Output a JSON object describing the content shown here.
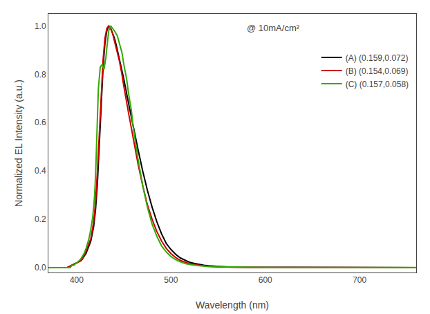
{
  "chart_data": {
    "type": "line",
    "xlabel": "Wavelength (nm)",
    "ylabel": "Normalized EL Intensity (a.u.)",
    "xlim": [
      370,
      760
    ],
    "ylim": [
      -0.02,
      1.05
    ],
    "xticks": [
      400,
      500,
      600,
      700
    ],
    "yticks": [
      {
        "value": 0.0,
        "label": "0.0"
      },
      0.2,
      0.4,
      0.6,
      0.8,
      {
        "value": 1.0,
        "label": "1.0"
      }
    ],
    "annotation": "@ 10mA/cm²",
    "legend": "upper right",
    "grid": false,
    "series": [
      {
        "name": "(A) (0.159,0.072)",
        "color": "#000000",
        "x": [
          370,
          375,
          380,
          385,
          390,
          395,
          400,
          405,
          410,
          415,
          418,
          420,
          422,
          424,
          426,
          428,
          430,
          432,
          434,
          436,
          438,
          440,
          442,
          445,
          448,
          450,
          455,
          460,
          465,
          470,
          475,
          480,
          485,
          490,
          495,
          500,
          505,
          510,
          515,
          520,
          525,
          530,
          535,
          540,
          550,
          560,
          570,
          580,
          590,
          600,
          620,
          640,
          660,
          680,
          700,
          720,
          740,
          760
        ],
        "values": [
          0.0,
          0.0,
          0.0,
          0.0,
          0.0,
          0.01,
          0.02,
          0.03,
          0.06,
          0.11,
          0.17,
          0.24,
          0.35,
          0.5,
          0.68,
          0.83,
          0.93,
          0.98,
          1.0,
          0.99,
          0.97,
          0.95,
          0.92,
          0.87,
          0.82,
          0.78,
          0.68,
          0.58,
          0.49,
          0.4,
          0.32,
          0.25,
          0.19,
          0.14,
          0.1,
          0.075,
          0.055,
          0.04,
          0.03,
          0.022,
          0.017,
          0.013,
          0.01,
          0.008,
          0.005,
          0.003,
          0.002,
          0.002,
          0.001,
          0.001,
          0.001,
          0.0,
          0.0,
          0.0,
          0.0,
          0.0,
          0.0,
          0.0
        ]
      },
      {
        "name": "(B) (0.154,0.069)",
        "color": "#cc0000",
        "x": [
          370,
          375,
          380,
          385,
          390,
          395,
          400,
          405,
          410,
          415,
          418,
          420,
          422,
          424,
          426,
          428,
          430,
          432,
          434,
          436,
          438,
          440,
          442,
          445,
          448,
          450,
          455,
          460,
          465,
          470,
          475,
          480,
          485,
          490,
          495,
          500,
          505,
          510,
          515,
          520,
          525,
          530,
          535,
          540,
          550,
          560,
          570,
          580,
          590,
          600,
          620,
          640,
          660,
          680,
          700,
          720,
          740,
          760
        ],
        "values": [
          0.0,
          0.0,
          0.0,
          0.0,
          0.0,
          0.01,
          0.02,
          0.03,
          0.07,
          0.12,
          0.19,
          0.27,
          0.4,
          0.55,
          0.72,
          0.86,
          0.95,
          0.99,
          1.0,
          0.99,
          0.97,
          0.94,
          0.91,
          0.86,
          0.8,
          0.75,
          0.64,
          0.53,
          0.43,
          0.34,
          0.26,
          0.2,
          0.15,
          0.11,
          0.08,
          0.058,
          0.042,
          0.03,
          0.022,
          0.016,
          0.012,
          0.009,
          0.007,
          0.005,
          0.003,
          0.002,
          0.002,
          0.001,
          0.001,
          0.001,
          0.001,
          0.0,
          0.0,
          0.0,
          0.0,
          0.0,
          0.0,
          0.0
        ]
      },
      {
        "name": "(C) (0.157,0.058)",
        "color": "#33aa00",
        "x": [
          370,
          375,
          380,
          385,
          390,
          393,
          395,
          397,
          400,
          403,
          405,
          408,
          410,
          413,
          415,
          417,
          418,
          419,
          420,
          421,
          422,
          423,
          425,
          427,
          429,
          430,
          431,
          432,
          433,
          434,
          436,
          438,
          440,
          443,
          445,
          448,
          450,
          453,
          455,
          458,
          460,
          465,
          470,
          475,
          480,
          485,
          490,
          495,
          500,
          505,
          510,
          515,
          520,
          525,
          530,
          540,
          550,
          560,
          570,
          580,
          590,
          600,
          620,
          640,
          660,
          680,
          700,
          720,
          740,
          760
        ],
        "values": [
          0.0,
          0.0,
          0.0,
          0.0,
          0.0,
          0.0,
          0.01,
          0.01,
          0.02,
          0.03,
          0.04,
          0.06,
          0.08,
          0.12,
          0.16,
          0.21,
          0.25,
          0.3,
          0.38,
          0.5,
          0.63,
          0.74,
          0.83,
          0.84,
          0.82,
          0.84,
          0.87,
          0.91,
          0.95,
          0.98,
          1.0,
          0.99,
          0.98,
          0.96,
          0.93,
          0.89,
          0.84,
          0.78,
          0.72,
          0.65,
          0.58,
          0.45,
          0.34,
          0.25,
          0.18,
          0.13,
          0.09,
          0.065,
          0.046,
          0.033,
          0.024,
          0.017,
          0.013,
          0.01,
          0.008,
          0.005,
          0.004,
          0.003,
          0.002,
          0.002,
          0.001,
          0.001,
          0.001,
          0.001,
          0.001,
          0.001,
          0.001,
          0.001,
          0.001,
          0.001
        ]
      }
    ]
  }
}
